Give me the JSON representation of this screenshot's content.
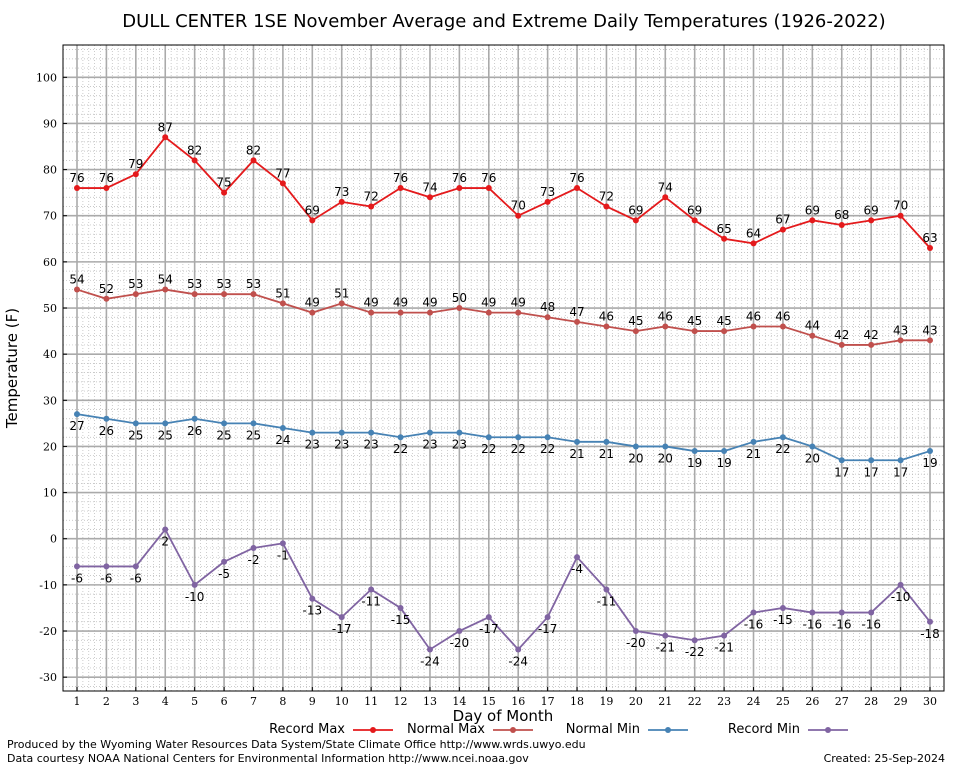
{
  "chart_data": {
    "type": "line",
    "title": "DULL CENTER 1SE November Average and Extreme Daily Temperatures (1926-2022)",
    "xlabel": "Day of Month",
    "ylabel": "Temperature (F)",
    "categories": [
      "1",
      "2",
      "3",
      "4",
      "5",
      "6",
      "7",
      "8",
      "9",
      "10",
      "11",
      "12",
      "13",
      "14",
      "15",
      "16",
      "17",
      "18",
      "19",
      "20",
      "21",
      "22",
      "23",
      "24",
      "25",
      "26",
      "27",
      "28",
      "29",
      "30"
    ],
    "yticks": [
      "-30",
      "-20",
      "-10",
      "0",
      "10",
      "20",
      "30",
      "40",
      "50",
      "60",
      "70",
      "80",
      "90",
      "100"
    ],
    "ylim": [
      -33,
      107
    ],
    "grid": true,
    "series": [
      {
        "name": "Record Max",
        "color": "#e41a1c",
        "values": [
          76,
          76,
          79,
          87,
          82,
          75,
          82,
          77,
          69,
          73,
          72,
          76,
          74,
          76,
          76,
          70,
          73,
          76,
          72,
          69,
          74,
          69,
          65,
          64,
          67,
          69,
          68,
          69,
          70,
          63
        ],
        "labels": [
          "76",
          "76",
          "79",
          "87",
          "82",
          "75",
          "82",
          "77",
          "69",
          "73",
          "72",
          "76",
          "74",
          "76",
          "76",
          "70",
          "73",
          "76",
          "72",
          "69",
          "74",
          "69",
          "65",
          "64",
          "67",
          "69",
          "68",
          "69",
          "70",
          "63"
        ]
      },
      {
        "name": "Normal Max",
        "color": "#c0504d",
        "values": [
          54,
          52,
          53,
          54,
          53,
          53,
          53,
          51,
          49,
          51,
          49,
          49,
          49,
          50,
          49,
          49,
          48,
          47,
          46,
          45,
          46,
          45,
          45,
          46,
          46,
          44,
          42,
          42,
          43,
          43
        ],
        "labels": [
          "54",
          "52",
          "53",
          "54",
          "53",
          "53",
          "53",
          "51",
          "49",
          "51",
          "49",
          "49",
          "49",
          "50",
          "49",
          "49",
          "48",
          "47",
          "46",
          "45",
          "46",
          "45",
          "45",
          "46",
          "46",
          "44",
          "42",
          "42",
          "43",
          "43"
        ]
      },
      {
        "name": "Normal Min",
        "color": "#4682b4",
        "values": [
          27,
          26,
          25,
          25,
          26,
          25,
          25,
          24,
          23,
          23,
          23,
          22,
          23,
          23,
          22,
          22,
          22,
          21,
          21,
          20,
          20,
          19,
          19,
          21,
          22,
          20,
          17,
          17,
          17,
          19
        ],
        "labels": [
          "27",
          "26",
          "25",
          "25",
          "26",
          "25",
          "25",
          "24",
          "23",
          "23",
          "23",
          "22",
          "23",
          "23",
          "22",
          "22",
          "22",
          "21",
          "21",
          "20",
          "20",
          "19",
          "19",
          "21",
          "22",
          "20",
          "17",
          "17",
          "17",
          "19"
        ]
      },
      {
        "name": "Record Min",
        "color": "#8064a2",
        "values": [
          -6,
          -6,
          -6,
          2,
          -10,
          -5,
          -2,
          -1,
          -13,
          -17,
          -11,
          -15,
          -24,
          -20,
          -17,
          -24,
          -17,
          -4,
          -11,
          -20,
          -21,
          -22,
          -21,
          -16,
          -15,
          -16,
          -16,
          -16,
          -10,
          -18
        ],
        "labels": [
          "-6",
          "-6",
          "-6",
          "2",
          "-10",
          "-5",
          "-2",
          "-1",
          "-13",
          "-17",
          "-11",
          "-15",
          "-24",
          "-20",
          "-17",
          "-24",
          "-17",
          "-4",
          "-11",
          "-20",
          "-21",
          "-22",
          "-21",
          "-16",
          "-15",
          "-16",
          "-16",
          "-16",
          "-10",
          "-18"
        ]
      }
    ],
    "legend_position": "bottom"
  },
  "credits": {
    "left_line1": "Produced by the Wyoming Water Resources Data System/State Climate Office http://www.wrds.uwyo.edu",
    "left_line2": "Data courtesy NOAA National Centers for Environmental Information http://www.ncei.noaa.gov",
    "created": "Created:  25-Sep-2024"
  }
}
